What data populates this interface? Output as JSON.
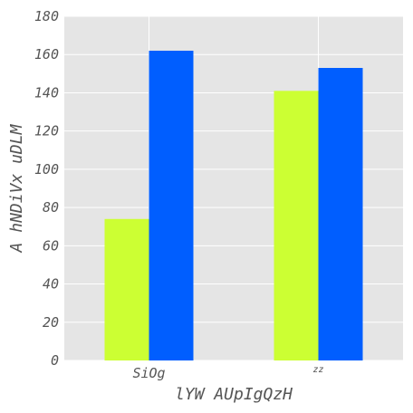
{
  "chart_data": {
    "type": "bar",
    "categories": [
      "SiOg",
      "zz"
    ],
    "series": [
      {
        "values": [
          74,
          141
        ],
        "color": "#ccff33"
      },
      {
        "values": [
          162,
          153
        ],
        "color": "#005eff"
      }
    ],
    "xlabel": "lYW AUpIgQzH",
    "ylabel": "A hNDiVx uDLM",
    "ylim": [
      0,
      180
    ],
    "yticks": [
      0,
      20,
      40,
      60,
      80,
      100,
      120,
      140,
      160,
      180
    ],
    "grid": true,
    "background": "#e5e5e5",
    "grid_color": "#ffffff"
  }
}
